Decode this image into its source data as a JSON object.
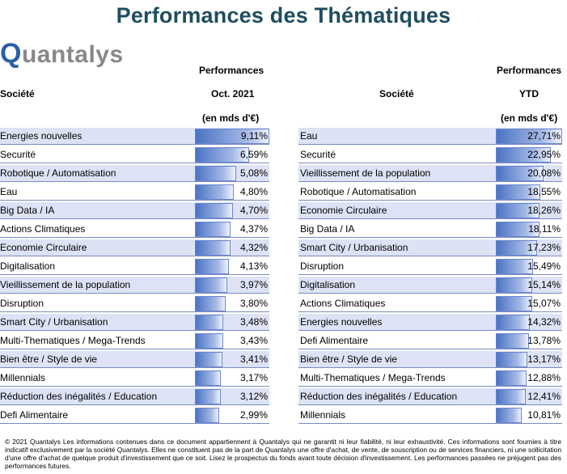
{
  "title": "Performances des Thématiques",
  "logo": {
    "text": "Quantalys",
    "first_letter": "Q",
    "rest": "uantalys"
  },
  "colors": {
    "title": "#1f4e5e",
    "row_band": "#dde3f5",
    "bar": "#4a73c4",
    "logo_q": "#2b5fa6",
    "logo_text": "#888888"
  },
  "chart_data": [
    {
      "type": "bar",
      "orientation": "horizontal",
      "header": {
        "col_name": "Société",
        "col_val_1": "Performances",
        "col_val_2": "Oct. 2021",
        "col_val_3": "(en mds d'€)"
      },
      "categories": [
        "Energies nouvelles",
        "Securité",
        "Robotique / Automatisation",
        "Eau",
        "Big Data / IA",
        "Actions Climatiques",
        "Economie Circulaire",
        "Digitalisation",
        "Vieillissement de la population",
        "Disruption",
        "Smart City / Urbanisation",
        "Multi-Thematiques / Mega-Trends",
        "Bien être / Style de vie",
        "Millennials",
        "Réduction des inégalités / Education",
        "Defi Alimentaire"
      ],
      "values": [
        9.11,
        6.59,
        5.08,
        4.8,
        4.7,
        4.37,
        4.32,
        4.13,
        3.97,
        3.8,
        3.48,
        3.43,
        3.41,
        3.17,
        3.12,
        2.99
      ],
      "labels": [
        "9,11%",
        "6,59%",
        "5,08%",
        "4,80%",
        "4,70%",
        "4,37%",
        "4,32%",
        "4,13%",
        "3,97%",
        "3,80%",
        "3,48%",
        "3,43%",
        "3,41%",
        "3,17%",
        "3,12%",
        "2,99%"
      ],
      "unit": "%"
    },
    {
      "type": "bar",
      "orientation": "horizontal",
      "header": {
        "col_name": "Société",
        "col_val_1": "Performances",
        "col_val_2": "YTD",
        "col_val_3": "(en mds d'€)"
      },
      "categories": [
        "Eau",
        "Securité",
        "Vieillissement de la population",
        "Robotique / Automatisation",
        "Economie Circulaire",
        "Big Data / IA",
        "Smart City / Urbanisation",
        "Disruption",
        "Digitalisation",
        "Actions Climatiques",
        "Energies nouvelles",
        "Defi Alimentaire",
        "Bien être / Style de vie",
        "Multi-Thematiques / Mega-Trends",
        "Réduction des inégalités / Education",
        "Millennials"
      ],
      "values": [
        27.71,
        22.95,
        20.08,
        18.55,
        18.26,
        18.11,
        17.23,
        15.49,
        15.14,
        15.07,
        14.32,
        13.78,
        13.17,
        12.88,
        12.41,
        10.81
      ],
      "labels": [
        "27,71%",
        "22,95%",
        "20,08%",
        "18,55%",
        "18,26%",
        "18,11%",
        "17,23%",
        "15,49%",
        "15,14%",
        "15,07%",
        "14,32%",
        "13,78%",
        "13,17%",
        "12,88%",
        "12,41%",
        "10,81%"
      ],
      "unit": "%"
    }
  ],
  "footer": "© 2021 Quantalys Les informations contenues dans ce document appartiennent à Quantalys qui ne garantit ni leur fiabilité, ni leur exhaustivité. Ces informations sont fournies à titre indicatif exclusivement par la société Quantalys. Elles ne constituent pas de la part de Quantalys une offre d'achat, de vente, de souscription ou de services financiers, ni une sollicitation d'une offre d'achat de quelque produit d'investissement que ce soit. Lisez le prospectus du fonds avant toute décision d'investissement. Les performances passées ne préjugent pas des performances futures."
}
